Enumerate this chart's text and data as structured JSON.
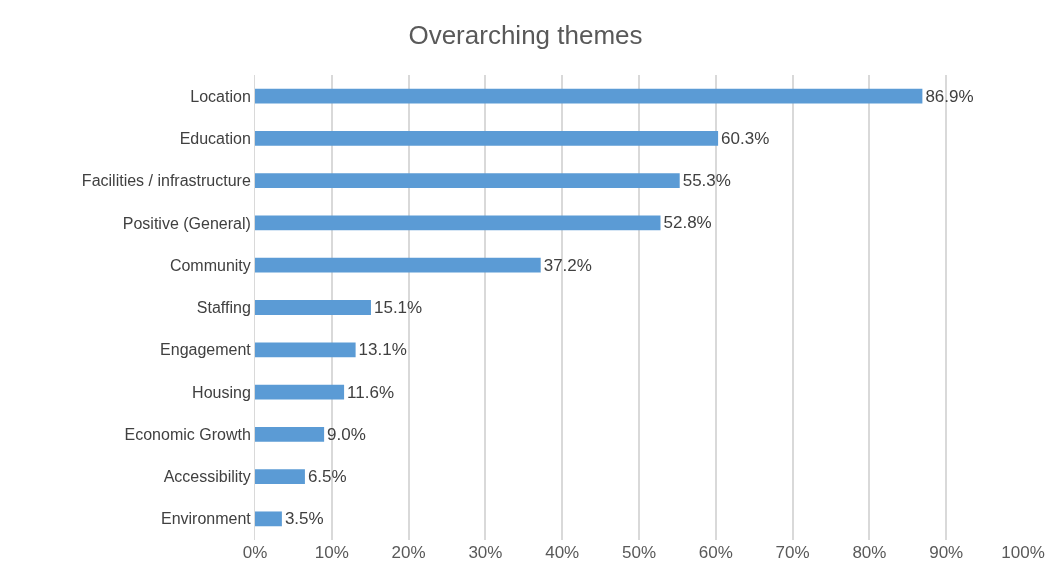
{
  "chart_data": {
    "type": "bar",
    "orientation": "horizontal",
    "title": "Overarching themes",
    "categories": [
      "Location",
      "Education",
      "Facilities / infrastructure",
      "Positive (General)",
      "Community",
      "Staffing",
      "Engagement",
      "Housing",
      "Economic Growth",
      "Accessibility",
      "Environment"
    ],
    "values": [
      86.9,
      60.3,
      55.3,
      52.8,
      37.2,
      15.1,
      13.1,
      11.6,
      9.0,
      6.5,
      3.5
    ],
    "value_labels": [
      "86.9%",
      "60.3%",
      "55.3%",
      "52.8%",
      "37.2%",
      "15.1%",
      "13.1%",
      "11.6%",
      "9.0%",
      "6.5%",
      "3.5%"
    ],
    "color": "#5b9bd5",
    "xlim": [
      0,
      100
    ],
    "xticks": [
      {
        "value": 0,
        "label": "0%"
      },
      {
        "value": 10,
        "label": "10%"
      },
      {
        "value": 20,
        "label": "20%"
      },
      {
        "value": 30,
        "label": "30%"
      },
      {
        "value": 40,
        "label": "40%"
      },
      {
        "value": 50,
        "label": "50%"
      },
      {
        "value": 60,
        "label": "60%"
      },
      {
        "value": 70,
        "label": "70%"
      },
      {
        "value": 80,
        "label": "80%"
      },
      {
        "value": 90,
        "label": "90%"
      },
      {
        "value": 100,
        "label": "100%"
      }
    ],
    "grid": "x"
  }
}
